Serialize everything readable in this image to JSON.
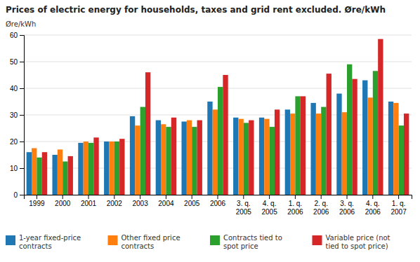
{
  "chart_data": {
    "type": "bar",
    "title": "Prices of electric energy for households, taxes and grid rent excluded. Øre/kWh",
    "y_label": "Øre/kWh",
    "categories": [
      "1999",
      "2000",
      "2001",
      "2002",
      "2003",
      "2004",
      "2005",
      "2006",
      "3. q.\n2005",
      "4. q.\n2005",
      "1. q.\n2006",
      "2. q.\n2006",
      "3. q.\n2006",
      "4. q.\n2006",
      "1. q.\n2007"
    ],
    "series": [
      {
        "name": "1-year fixed-price\ncontracts",
        "values": [
          16,
          15,
          19.5,
          20,
          29.5,
          28,
          27.5,
          35,
          29,
          29,
          32,
          34.5,
          38,
          43,
          35
        ]
      },
      {
        "name": "Other fixed price\ncontracts",
        "values": [
          17.5,
          17,
          20,
          20,
          26,
          26.5,
          28,
          32,
          28.5,
          28.5,
          30.5,
          30.5,
          31,
          36.5,
          34.5
        ]
      },
      {
        "name": "Contracts tied to\nspot price",
        "values": [
          14,
          12.5,
          19.5,
          20,
          33,
          25.5,
          25.5,
          40.5,
          27,
          25.5,
          37,
          33,
          49,
          46.5,
          26
        ]
      },
      {
        "name": "Variable price (not\ntied to spot price)",
        "values": [
          16,
          14.5,
          21.5,
          21,
          46,
          29,
          28,
          45,
          28,
          32,
          37,
          45.5,
          43.5,
          58.5,
          30.5
        ]
      }
    ],
    "ylim": [
      0,
      60
    ],
    "yticks": [
      0,
      10,
      20,
      30,
      40,
      50,
      60
    ],
    "grid": true,
    "legend": "bottom"
  }
}
